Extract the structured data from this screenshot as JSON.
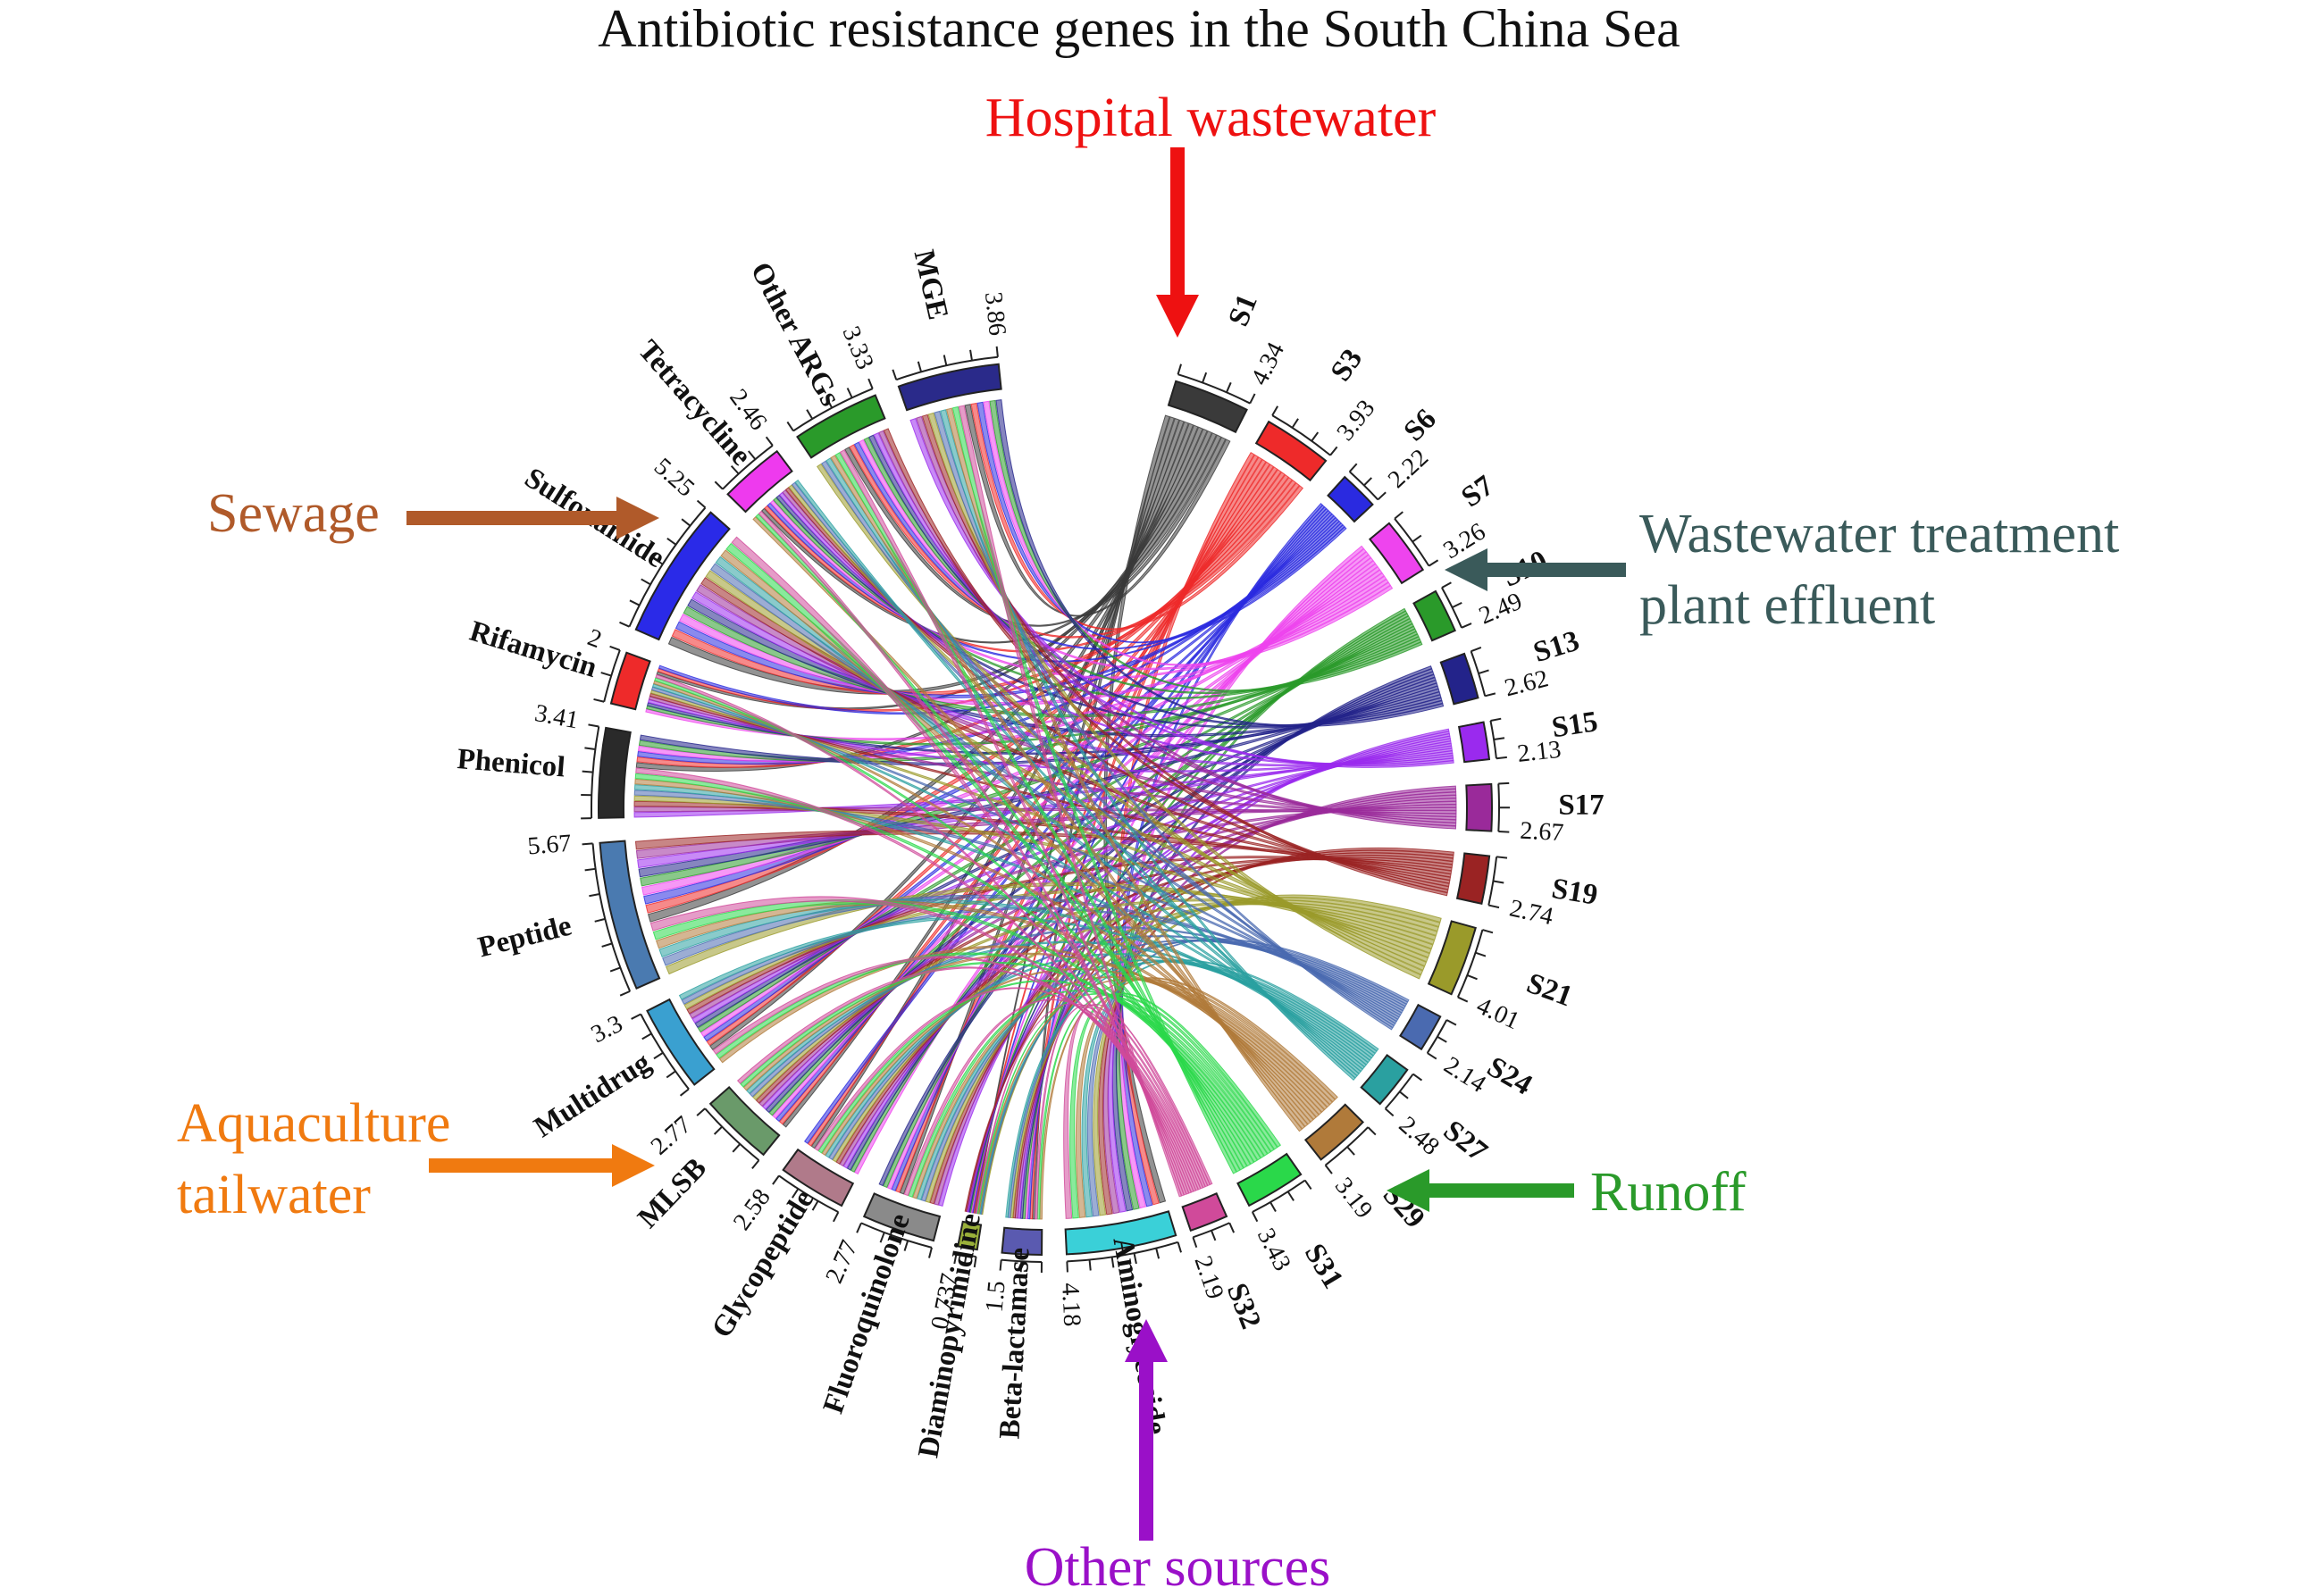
{
  "title": "Antibiotic resistance genes in the South China Sea",
  "sites": [
    {
      "name": "S1",
      "value": "4.34",
      "color": "#3a3a3a"
    },
    {
      "name": "S3",
      "value": "3.93",
      "color": "#ee2a2a"
    },
    {
      "name": "S6",
      "value": "2.22",
      "color": "#2a2ae0"
    },
    {
      "name": "S7",
      "value": "3.26",
      "color": "#ee44ee"
    },
    {
      "name": "S10",
      "value": "2.49",
      "color": "#2a9a2a"
    },
    {
      "name": "S13",
      "value": "2.62",
      "color": "#23238a"
    },
    {
      "name": "S15",
      "value": "2.13",
      "color": "#9a2aee"
    },
    {
      "name": "S17",
      "value": "2.67",
      "color": "#9a2a9a"
    },
    {
      "name": "S19",
      "value": "2.74",
      "color": "#9a2323"
    },
    {
      "name": "S21",
      "value": "4.01",
      "color": "#9a9a2a"
    },
    {
      "name": "S24",
      "value": "2.14",
      "color": "#4a6ab0"
    },
    {
      "name": "S27",
      "value": "2.48",
      "color": "#2aa0a0"
    },
    {
      "name": "S29",
      "value": "3.19",
      "color": "#b07a3a"
    },
    {
      "name": "S31",
      "value": "3.43",
      "color": "#2ad84a"
    },
    {
      "name": "S32",
      "value": "2.19",
      "color": "#d04a9a"
    }
  ],
  "genes": [
    {
      "name": "Aminoglycoside",
      "value": "4.18",
      "color": "#3ad0d8"
    },
    {
      "name": "Beta-lactamase",
      "value": "1.5",
      "color": "#5a5ab0"
    },
    {
      "name": "Diaminopyrimidine",
      "value": "0.737",
      "color": "#9ab03a"
    },
    {
      "name": "Fluoroquinolone",
      "value": "2.77",
      "color": "#8a8a8a"
    },
    {
      "name": "Glycopeptide",
      "value": "2.58",
      "color": "#b07a8a"
    },
    {
      "name": "MLSB",
      "value": "2.77",
      "color": "#6a9a6a"
    },
    {
      "name": "Multidrug",
      "value": "3.3",
      "color": "#3aa0d0"
    },
    {
      "name": "Peptide",
      "value": "5.67",
      "color": "#4a7ab0"
    },
    {
      "name": "Phenicol",
      "value": "3.41",
      "color": "#2a2a2a"
    },
    {
      "name": "Rifamycin",
      "value": "2",
      "color": "#ee2a2a"
    },
    {
      "name": "Sulfonamide",
      "value": "5.25",
      "color": "#2a2ae8"
    },
    {
      "name": "Tetracycline",
      "value": "2.46",
      "color": "#ee3aee"
    },
    {
      "name": "Other ARGs",
      "value": "3.33",
      "color": "#2a9a2a"
    },
    {
      "name": "MGE",
      "value": "3.86",
      "color": "#2a2a8a"
    }
  ],
  "sources": [
    {
      "key": "hospital",
      "lines": [
        "Hospital wastewater"
      ],
      "color": "#ee1111"
    },
    {
      "key": "wwtp",
      "lines": [
        "Wastewater treatment",
        "plant effluent"
      ],
      "color": "#3a5a5a"
    },
    {
      "key": "sewage",
      "lines": [
        "Sewage"
      ],
      "color": "#b05a2a"
    },
    {
      "key": "aquaculture",
      "lines": [
        "Aquaculture",
        "tailwater"
      ],
      "color": "#f07a10"
    },
    {
      "key": "runoff",
      "lines": [
        "Runoff"
      ],
      "color": "#2a9a2a"
    },
    {
      "key": "other",
      "lines": [
        "Other sources"
      ],
      "color": "#9a10c8"
    }
  ]
}
